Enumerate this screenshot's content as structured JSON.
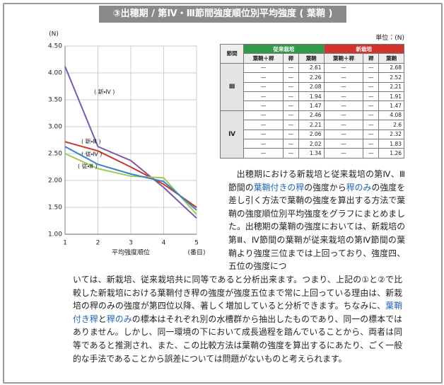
{
  "header": {
    "title": "③出穂期 / 第Ⅳ・Ⅲ節間強度順位別平均強度 ( 葉鞘 )"
  },
  "chart_data": {
    "type": "line",
    "y_unit": "(N)",
    "xlabel": "平均強度順位",
    "x_unit": "(番目)",
    "x": [
      1,
      2,
      3,
      4,
      5
    ],
    "xlim": [
      1,
      5
    ],
    "xticks": [
      1,
      2,
      3,
      4,
      5
    ],
    "ylim": [
      1,
      4.5
    ],
    "yticks": [
      {
        "value": 1,
        "label": "1.00"
      },
      {
        "value": 1.5,
        "label": "1.50"
      },
      {
        "value": 2,
        "label": "2.00"
      },
      {
        "value": 2.5,
        "label": "2.50"
      },
      {
        "value": 3,
        "label": "3.00"
      },
      {
        "value": 3.5,
        "label": "3.50"
      },
      {
        "value": 4,
        "label": "4.00"
      },
      {
        "value": 4.5,
        "label": "4.50"
      }
    ],
    "grid": true,
    "series": [
      {
        "name": "( 新・Ⅳ )",
        "color": "#7a5aa6",
        "label_color": "#d0342c",
        "values": [
          4.12,
          2.63,
          2.37,
          1.87,
          1.3
        ]
      },
      {
        "name": "( 新・Ⅲ )",
        "color": "#c8372f",
        "label_color": "#d0342c",
        "values": [
          2.72,
          2.55,
          2.25,
          1.93,
          1.5
        ]
      },
      {
        "name": "( 従・Ⅳ )",
        "color": "#9ccb5a",
        "label_color": "#5aa33a",
        "values": [
          2.5,
          2.22,
          2.08,
          2.05,
          1.37
        ]
      },
      {
        "name": "( 従・Ⅲ )",
        "color": "#3b82c4",
        "label_color": "#2a9a9a",
        "values": [
          2.63,
          2.3,
          2.12,
          1.98,
          1.45
        ]
      }
    ]
  },
  "table": {
    "unit": "単位：(N)",
    "corner": "節間",
    "groups": [
      {
        "label": "従来栽培",
        "color": "#2f9a4a"
      },
      {
        "label": "新栽培",
        "color": "#d0342c"
      }
    ],
    "columns": [
      "葉鞘＋稈",
      "稈",
      "葉鞘",
      "葉鞘＋稈",
      "稈",
      "葉鞘"
    ],
    "sections": [
      {
        "label": "Ⅲ",
        "rows": [
          [
            "—",
            "—",
            2.61,
            "—",
            "—",
            2.68
          ],
          [
            "—",
            "—",
            2.26,
            "—",
            "—",
            2.52
          ],
          [
            "—",
            "—",
            2.08,
            "—",
            "—",
            2.21
          ],
          [
            "—",
            "—",
            1.94,
            "—",
            "—",
            1.91
          ],
          [
            "—",
            "—",
            1.47,
            "—",
            "—",
            1.47
          ]
        ]
      },
      {
        "label": "Ⅳ",
        "rows": [
          [
            "—",
            "—",
            2.46,
            "—",
            "—",
            4.08
          ],
          [
            "—",
            "—",
            2.21,
            "—",
            "—",
            2.6
          ],
          [
            "—",
            "—",
            2.06,
            "—",
            "—",
            2.32
          ],
          [
            "—",
            "—",
            2.02,
            "—",
            "—",
            1.83
          ],
          [
            "—",
            "—",
            1.34,
            "—",
            "—",
            1.26
          ]
        ]
      }
    ]
  },
  "body": {
    "right": [
      {
        "text": "出穂期における新栽培と従来栽培の第Ⅳ、Ⅲ節間の",
        "emphasis": false
      },
      {
        "text": "葉鞘付きの稈",
        "emphasis": true
      },
      {
        "text": "の強度から",
        "emphasis": false
      },
      {
        "text": "稈のみ",
        "emphasis": true
      },
      {
        "text": "の強度を差し引く方法で葉鞘の強度を算出する方法で葉鞘の強度順位別平均強度をグラフにまとめました。出穂期の葉鞘の強度においては、新栽培の第Ⅲ、Ⅳ節間の葉鞘が従来栽培の第Ⅳ節間の葉鞘より強度三位までは上回っており、強度四、五位の強度につ",
        "emphasis": false
      }
    ],
    "full": [
      {
        "text": "いては、新栽培、従来栽培共に同等であると分析出来ます。つまり、上記の①と②で比較した新栽培における葉鞘付き稈の強度が強度五位まで常に上回っている理由は、新栽培の稈のみの強度が第四位以降、著しく増加していると分析できます。ちなみに、",
        "emphasis": false
      },
      {
        "text": "葉鞘付き稈",
        "emphasis": true
      },
      {
        "text": "と",
        "emphasis": false
      },
      {
        "text": "稈のみ",
        "emphasis": true
      },
      {
        "text": "の標本はそれぞれ別の水槽群から抽出したものであり、同一の標本ではありません。しかし、同一環境の下において成長過程を踏んでいることから、両者は同等であると推測され、また、この比較方法は葉鞘の強度を算出するにあたり、ごく一般的な手法であることから誤差については問題がないものと考えられます。",
        "emphasis": false
      }
    ]
  }
}
